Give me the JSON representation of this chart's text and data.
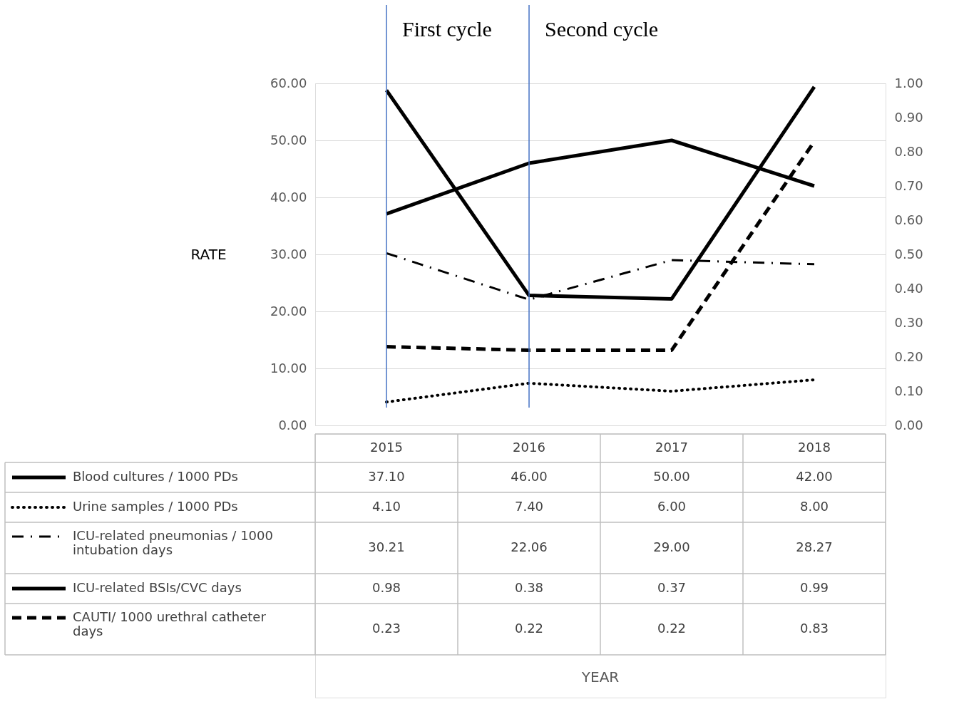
{
  "chart_data": {
    "type": "line",
    "categories": [
      "2015",
      "2016",
      "2017",
      "2018"
    ],
    "series": [
      {
        "name": "Blood cultures / 1000 PDs",
        "color": "#000000",
        "line_style": "solid",
        "values": [
          37.1,
          46.0,
          50.0,
          42.0
        ],
        "value_labels": [
          "37.10",
          "46.00",
          "50.00",
          "42.00"
        ]
      },
      {
        "name": "Urine samples / 1000 PDs",
        "color": "#000000",
        "line_style": "dotted",
        "values": [
          4.1,
          7.4,
          6.0,
          8.0
        ],
        "value_labels": [
          "4.10",
          "7.40",
          "6.00",
          "8.00"
        ]
      },
      {
        "name": "ICU-related pneumonias / 1000 intubation days",
        "color": "#000000",
        "line_style": "dashdot",
        "values": [
          30.21,
          22.06,
          29.0,
          28.27
        ],
        "value_labels": [
          "30.21",
          "22.06",
          "29.00",
          "28.27"
        ]
      },
      {
        "name": "ICU-related BSIs/CVC days",
        "color": "#000000",
        "line_style": "solid",
        "axis": "y2",
        "values": [
          0.98,
          0.38,
          0.37,
          0.99
        ],
        "value_labels": [
          "0.98",
          "0.38",
          "0.37",
          "0.99"
        ]
      },
      {
        "name": "CAUTI/ 1000 urethral catheter days",
        "color": "#000000",
        "line_style": "dashed",
        "axis": "y2",
        "values": [
          0.23,
          0.22,
          0.22,
          0.83
        ],
        "value_labels": [
          "0.23",
          "0.22",
          "0.22",
          "0.83"
        ]
      }
    ],
    "ylabel": "RATE",
    "annotations": [
      "YEAR"
    ],
    "ylim": [
      0,
      60
    ],
    "yticks": [
      {
        "value": 0,
        "label": "0.00"
      },
      {
        "value": 10,
        "label": "10.00"
      },
      {
        "value": 20,
        "label": "20.00"
      },
      {
        "value": 30,
        "label": "30.00"
      },
      {
        "value": 40,
        "label": "40.00"
      },
      {
        "value": 50,
        "label": "50.00"
      },
      {
        "value": 60,
        "label": "60.00"
      }
    ],
    "y2lim": [
      0,
      1
    ],
    "y2ticks": [
      {
        "value": 0,
        "label": "0.00"
      },
      {
        "value": 0.1,
        "label": "0.10"
      },
      {
        "value": 0.2,
        "label": "0.20"
      },
      {
        "value": 0.3,
        "label": "0.30"
      },
      {
        "value": 0.4,
        "label": "0.40"
      },
      {
        "value": 0.5,
        "label": "0.50"
      },
      {
        "value": 0.6,
        "label": "0.60"
      },
      {
        "value": 0.7,
        "label": "0.70"
      },
      {
        "value": 0.8,
        "label": "0.80"
      },
      {
        "value": 0.9,
        "label": "0.90"
      },
      {
        "value": 1,
        "label": "1.00"
      }
    ],
    "ref_lines": [
      {
        "axis": "x",
        "value": "2015",
        "label": "First cycle",
        "color": "#4472c4"
      },
      {
        "axis": "x",
        "value": "2016",
        "label": "Second cycle",
        "color": "#4472c4"
      }
    ],
    "grid": "y",
    "legend": "bottom"
  }
}
